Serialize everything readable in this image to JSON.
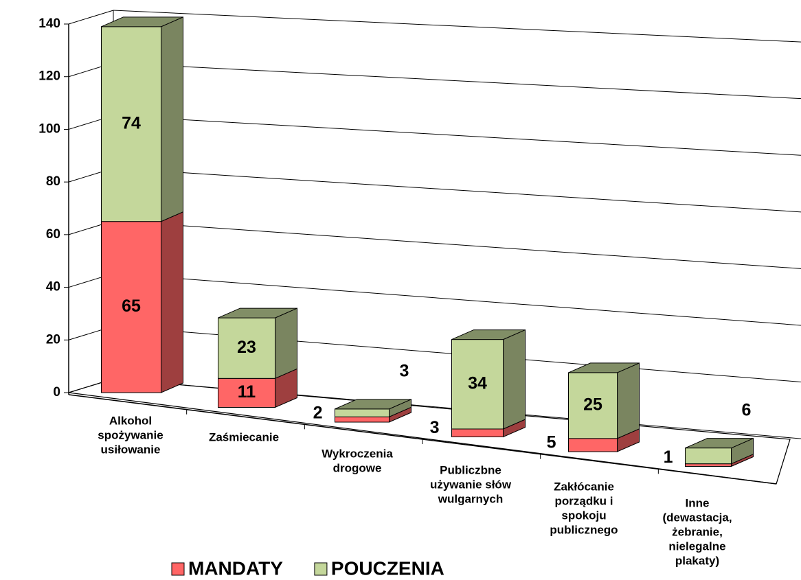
{
  "chart_data": {
    "type": "bar3d_stacked",
    "categories": [
      [
        "Alkohol",
        "spożywanie",
        "usiłowanie"
      ],
      [
        "Zaśmiecanie"
      ],
      [
        "Wykroczenia",
        "drogowe"
      ],
      [
        "Publiczbne",
        "używanie słów",
        "wulgarnych"
      ],
      [
        "Zakłócanie",
        "porządku i",
        "spokoju",
        "publicznego"
      ],
      [
        "Inne",
        "(dewastacja,",
        "żebranie,",
        "nielegalne",
        "plakaty)"
      ]
    ],
    "series": [
      {
        "name": "MANDATY",
        "color": "#ff6666",
        "values": [
          65,
          11,
          2,
          3,
          5,
          1
        ]
      },
      {
        "name": "POUCZENIA",
        "color": "#c4d79b",
        "values": [
          74,
          23,
          3,
          34,
          25,
          6
        ]
      }
    ],
    "ylim": [
      0,
      140
    ],
    "yticks": [
      0,
      20,
      40,
      60,
      80,
      100,
      120,
      140
    ],
    "grid": true,
    "legend": "bottom"
  }
}
